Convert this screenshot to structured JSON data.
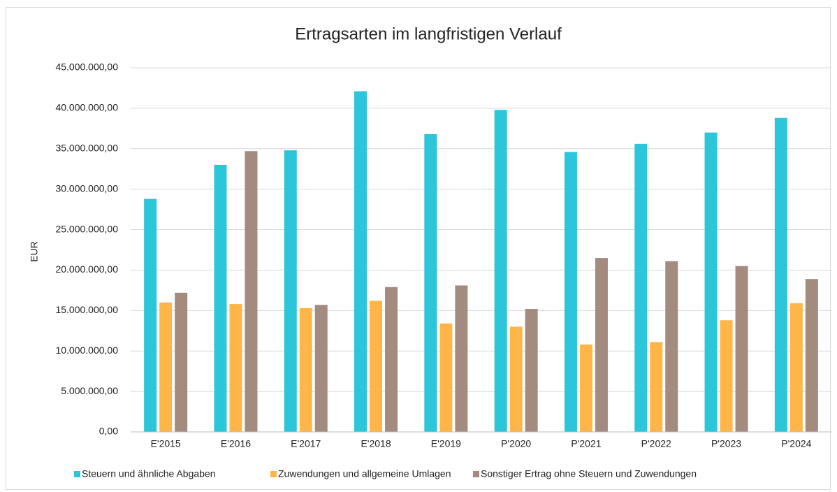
{
  "chart_data": {
    "type": "bar",
    "title": "Ertragsarten im langfristigen Verlauf",
    "y_label": "EUR",
    "categories": [
      "E'2015",
      "E'2016",
      "E'2017",
      "E'2018",
      "E'2019",
      "P'2020",
      "P'2021",
      "P'2022",
      "P'2023",
      "P'2024"
    ],
    "series": [
      {
        "name": "Steuern und ähnliche Abgaben",
        "color": "#2bc6d9",
        "values": [
          28800000,
          33000000,
          34800000,
          42100000,
          36800000,
          39800000,
          34600000,
          35600000,
          37000000,
          38800000
        ]
      },
      {
        "name": "Zuwendungen und allgemeine Umlagen",
        "color": "#ffb547",
        "values": [
          16000000,
          15800000,
          15300000,
          16200000,
          13400000,
          13000000,
          10800000,
          11100000,
          13800000,
          15900000
        ]
      },
      {
        "name": "Sonstiger Ertrag ohne Steuern und Zuwendungen",
        "color": "#a38b80",
        "values": [
          17200000,
          34700000,
          15700000,
          17900000,
          18100000,
          15200000,
          21500000,
          21100000,
          20500000,
          18900000
        ]
      }
    ],
    "ylim": [
      0,
      45000000
    ],
    "yticks": [
      {
        "value": 0,
        "label": "0,00"
      },
      {
        "value": 5000000,
        "label": "5.000.000,00"
      },
      {
        "value": 10000000,
        "label": "10.000.000,00"
      },
      {
        "value": 15000000,
        "label": "15.000.000,00"
      },
      {
        "value": 20000000,
        "label": "20.000.000,00"
      },
      {
        "value": 25000000,
        "label": "25.000.000,00"
      },
      {
        "value": 30000000,
        "label": "30.000.000,00"
      },
      {
        "value": 35000000,
        "label": "35.000.000,00"
      },
      {
        "value": 40000000,
        "label": "40.000.000,00"
      },
      {
        "value": 45000000,
        "label": "45.000.000,00"
      }
    ],
    "grid": true,
    "legend": "bottom"
  }
}
